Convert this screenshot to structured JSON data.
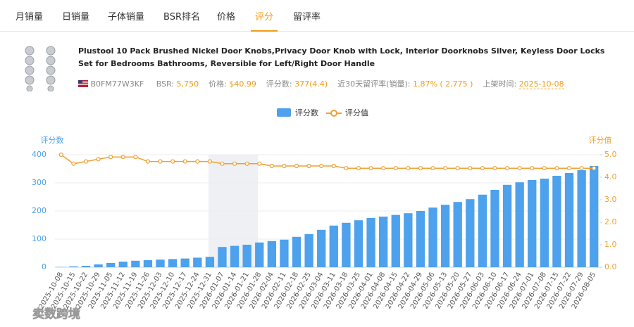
{
  "tabs": [
    "月销量",
    "日销量",
    "子体销量",
    "BSR排名",
    "价格",
    "评分",
    "留评率"
  ],
  "active_tab": 5,
  "product": {
    "title": "Plustool 10 Pack Brushed Nickel Door Knobs,Privacy Door Knob with Lock, Interior Doorknobs Silver, Keyless Door Locks Set for Bedrooms Bathrooms, Reversible for Left/Right Door Handle",
    "asin": "B0FM77W3KF",
    "fields": [
      {
        "label": "BSR:",
        "value": "5,750"
      },
      {
        "label": "价格:",
        "value": "$40.99"
      },
      {
        "label": "评分数:",
        "value": "377(4.4)"
      },
      {
        "label": "近30天留评率(销量):",
        "value": "1.87% ( 2,775 )"
      },
      {
        "label": "上架时间:",
        "value": "2025-10-08"
      }
    ]
  },
  "watermark": "卖数跨境",
  "chart_data": {
    "type": "bar-line",
    "y_label": "评分数",
    "y2_label": "评分值",
    "categories": [
      "2025-10-08",
      "2025-10-15",
      "2025-10-22",
      "2025-10-29",
      "2025-11-05",
      "2025-11-12",
      "2025-11-19",
      "2025-11-26",
      "2025-12-03",
      "2025-12-10",
      "2025-12-17",
      "2025-12-24",
      "2025-12-31",
      "2026-01-07",
      "2026-01-14",
      "2026-01-21",
      "2026-01-28",
      "2026-02-04",
      "2026-02-11",
      "2026-02-18",
      "2026-02-25",
      "2026-03-04",
      "2026-03-11",
      "2026-03-18",
      "2026-03-25",
      "2026-04-01",
      "2026-04-08",
      "2026-04-15",
      "2026-04-22",
      "2026-04-29",
      "2026-05-06",
      "2026-05-13",
      "2026-05-20",
      "2026-05-27",
      "2026-06-03",
      "2026-06-10",
      "2026-06-17",
      "2026-06-24",
      "2026-07-01",
      "2026-07-08",
      "2026-07-15",
      "2026-07-22",
      "2026-07-29",
      "2026-08-05"
    ],
    "series": [
      {
        "name": "评分数",
        "type": "bar",
        "color": "#4ea1ec",
        "values": [
          1,
          3,
          5,
          10,
          15,
          20,
          23,
          25,
          27,
          29,
          31,
          34,
          37,
          72,
          76,
          80,
          88,
          93,
          98,
          108,
          118,
          133,
          148,
          158,
          167,
          175,
          180,
          186,
          192,
          200,
          212,
          222,
          232,
          242,
          258,
          275,
          293,
          302,
          310,
          315,
          325,
          335,
          345,
          360
        ]
      },
      {
        "name": "评分值",
        "type": "line",
        "axis": "y2",
        "color": "#f0a030",
        "values": [
          5.0,
          4.6,
          4.7,
          4.8,
          4.9,
          4.9,
          4.9,
          4.7,
          4.7,
          4.7,
          4.7,
          4.7,
          4.7,
          4.6,
          4.6,
          4.6,
          4.6,
          4.5,
          4.5,
          4.5,
          4.5,
          4.5,
          4.5,
          4.4,
          4.4,
          4.4,
          4.4,
          4.4,
          4.4,
          4.4,
          4.4,
          4.4,
          4.4,
          4.4,
          4.4,
          4.4,
          4.4,
          4.4,
          4.4,
          4.4,
          4.4,
          4.4,
          4.4,
          4.4
        ]
      }
    ],
    "ylim": [
      0,
      400
    ],
    "yticks": [
      0,
      100,
      200,
      300,
      400
    ],
    "y2lim": [
      0,
      5
    ],
    "y2ticks": [
      {
        "value": 0,
        "label": "0.0"
      },
      {
        "value": 1,
        "label": "1.0"
      },
      {
        "value": 2,
        "label": "2.0"
      },
      {
        "value": 3,
        "label": "3.0"
      },
      {
        "value": 4,
        "label": "4.0"
      },
      {
        "value": 5,
        "label": "5.0"
      }
    ],
    "grid": true,
    "legend": "top"
  }
}
